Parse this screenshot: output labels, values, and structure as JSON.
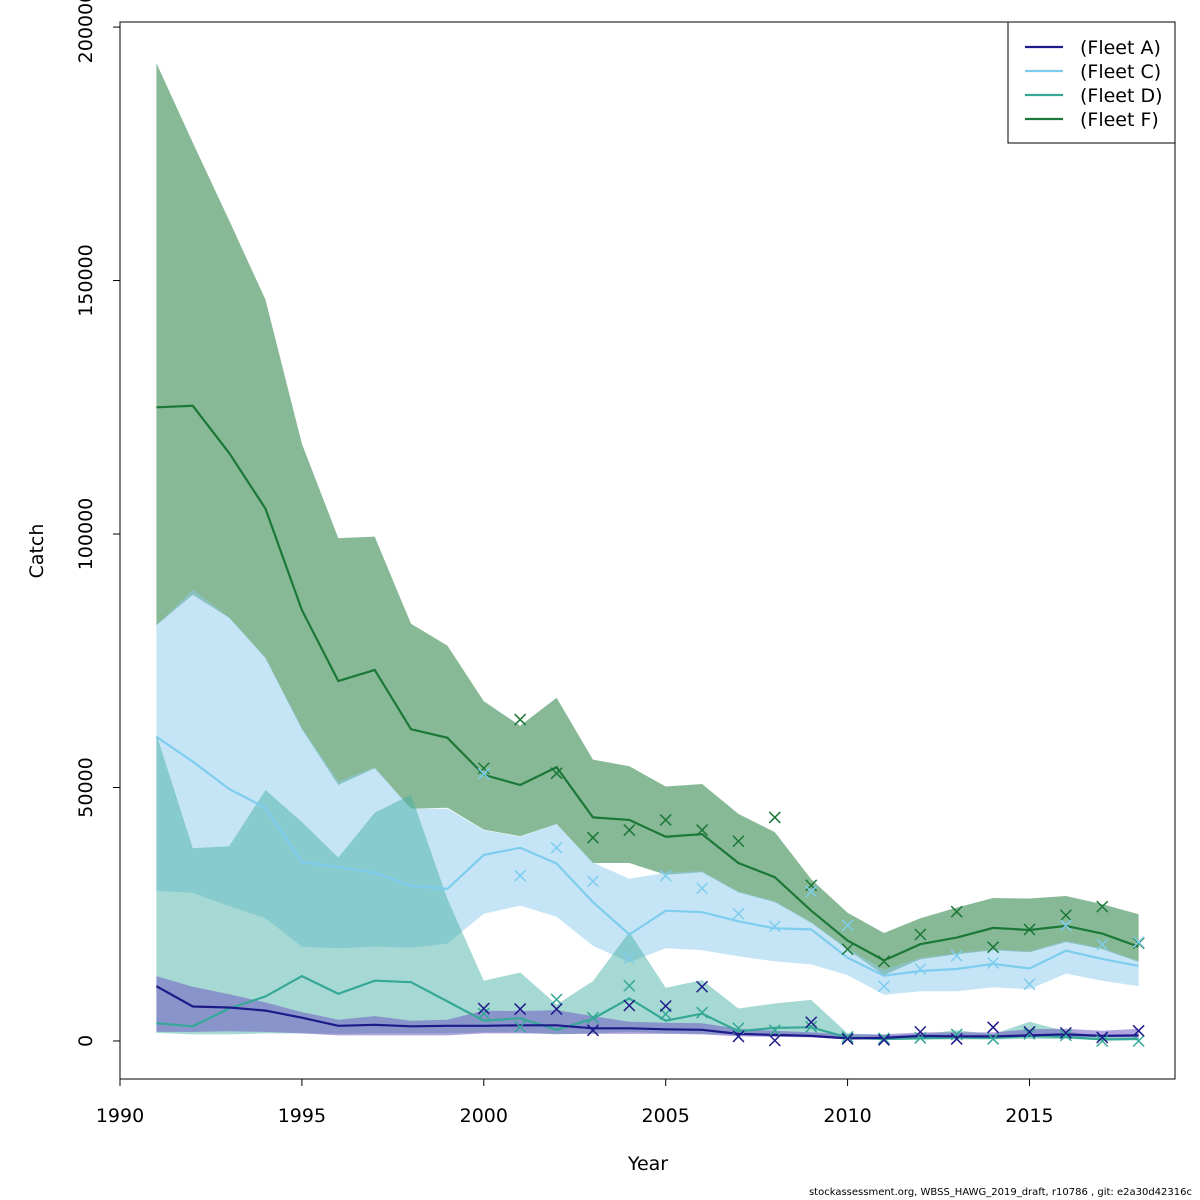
{
  "chart_data": {
    "type": "line",
    "title": "",
    "xlabel": "Year",
    "ylabel": "Catch",
    "xlim": [
      1990,
      2019
    ],
    "ylim": [
      -7500,
      201000
    ],
    "xticks": [
      1990,
      1995,
      2000,
      2005,
      2010,
      2015
    ],
    "yticks": [
      0,
      50000,
      100000,
      150000,
      200000
    ],
    "xtick_labels": [
      "1990",
      "1995",
      "2000",
      "2005",
      "2010",
      "2015"
    ],
    "ytick_labels": [
      "0",
      "50000",
      "100000",
      "150000",
      "200000"
    ],
    "legend_position": "top-right",
    "grid": false,
    "x": [
      1991,
      1992,
      1993,
      1994,
      1995,
      1996,
      1997,
      1998,
      1999,
      2000,
      2001,
      2002,
      2003,
      2004,
      2005,
      2006,
      2007,
      2008,
      2009,
      2010,
      2011,
      2012,
      2013,
      2014,
      2015,
      2016,
      2017,
      2018
    ],
    "series": [
      {
        "name": "(Fleet F)",
        "color": "#1b7837",
        "band_color": "#1b7837",
        "band_opacity": 0.52,
        "values": [
          125000,
          125300,
          116000,
          105000,
          85000,
          71000,
          73200,
          61500,
          59800,
          52500,
          50500,
          54000,
          44100,
          43600,
          40300,
          40800,
          35100,
          32300,
          25700,
          19800,
          15900,
          19100,
          20400,
          22300,
          21900,
          22700,
          21200,
          18600
        ],
        "lower": [
          82000,
          88000,
          83500,
          75500,
          61500,
          50500,
          53800,
          45800,
          46000,
          41700,
          40400,
          42800,
          35100,
          35100,
          32800,
          33300,
          29300,
          27400,
          23300,
          18000,
          13000,
          16100,
          17100,
          17900,
          17500,
          19500,
          18100,
          15600
        ],
        "upper": [
          192900,
          177200,
          161900,
          146200,
          117800,
          99200,
          99500,
          82300,
          78000,
          67000,
          62200,
          67700,
          55500,
          54200,
          50200,
          50700,
          44800,
          41200,
          31900,
          25300,
          21300,
          24200,
          26300,
          28200,
          28100,
          28600,
          27000,
          25000
        ],
        "observed": [
          null,
          null,
          null,
          null,
          null,
          null,
          null,
          null,
          null,
          53800,
          63400,
          52800,
          40100,
          41600,
          43600,
          41600,
          39400,
          44100,
          30700,
          18100,
          15700,
          21000,
          25500,
          18500,
          22000,
          24800,
          26500,
          19300
        ]
      },
      {
        "name": "(Fleet C)",
        "color": "#7fcdee",
        "band_color": "#8ccbee",
        "band_opacity": 0.5,
        "values": [
          60000,
          55100,
          49700,
          46000,
          35300,
          34300,
          33200,
          30600,
          30000,
          36700,
          38100,
          35000,
          27400,
          21000,
          25700,
          25400,
          23600,
          22200,
          22000,
          16400,
          12900,
          13800,
          14200,
          15200,
          14300,
          17800,
          16200,
          14800
        ],
        "lower": [
          29600,
          29200,
          26600,
          24200,
          18600,
          18300,
          18600,
          18400,
          19200,
          25100,
          26700,
          24500,
          18800,
          15500,
          18300,
          17900,
          16700,
          15700,
          15100,
          13000,
          9100,
          9800,
          9800,
          10600,
          10200,
          13300,
          11900,
          10800
        ],
        "upper": [
          82000,
          89000,
          83600,
          75700,
          61800,
          51200,
          54000,
          45800,
          45800,
          41600,
          40300,
          42800,
          35200,
          32000,
          33200,
          33500,
          29500,
          27600,
          23500,
          18300,
          14000,
          16400,
          17300,
          18100,
          17700,
          19800,
          18300,
          15800
        ],
        "observed": [
          null,
          null,
          null,
          null,
          null,
          null,
          null,
          null,
          null,
          52700,
          32600,
          38100,
          31500,
          16300,
          32600,
          30100,
          25100,
          22600,
          29500,
          22800,
          10800,
          14200,
          16800,
          15400,
          11200,
          22800,
          19000,
          19500
        ]
      },
      {
        "name": "(Fleet D)",
        "color": "#35a896",
        "band_color": "#45b0a4",
        "band_opacity": 0.48,
        "values": [
          3500,
          2900,
          6400,
          8800,
          12800,
          9300,
          11900,
          11600,
          7800,
          4000,
          4500,
          2200,
          4400,
          8400,
          4000,
          5400,
          1900,
          2600,
          2700,
          700,
          400,
          500,
          700,
          600,
          1000,
          800,
          300,
          400
        ],
        "lower": [
          1600,
          1300,
          1300,
          1500,
          1500,
          1400,
          1500,
          1500,
          1500,
          1700,
          1700,
          1300,
          1500,
          1800,
          1500,
          1400,
          1200,
          1000,
          1000,
          300,
          200,
          300,
          300,
          300,
          400,
          400,
          200,
          200
        ],
        "upper": [
          60500,
          38000,
          38400,
          49500,
          43200,
          36200,
          45000,
          48600,
          28000,
          11900,
          13500,
          7200,
          11800,
          21500,
          10500,
          12000,
          6400,
          7400,
          8100,
          1500,
          1200,
          1300,
          2100,
          1300,
          3800,
          1900,
          800,
          900
        ],
        "observed": [
          null,
          null,
          null,
          null,
          null,
          null,
          null,
          null,
          null,
          5400,
          2800,
          8200,
          4600,
          10900,
          5300,
          5600,
          2500,
          2100,
          2800,
          800,
          500,
          600,
          1300,
          400,
          1400,
          1100,
          0,
          0
        ]
      },
      {
        "name": "(Fleet A)",
        "color": "#1f1a8a",
        "band_color": "#6f5bc2",
        "band_opacity": 0.55,
        "values": [
          10800,
          6800,
          6600,
          6000,
          4600,
          3000,
          3200,
          2900,
          3000,
          3000,
          3100,
          3100,
          2500,
          2500,
          2300,
          2200,
          1400,
          1200,
          1000,
          500,
          600,
          1000,
          900,
          900,
          1100,
          1300,
          1000,
          1100
        ],
        "lower": [
          1800,
          1800,
          1900,
          1800,
          1500,
          1100,
          1100,
          1100,
          1100,
          1500,
          1500,
          1400,
          1400,
          1400,
          1400,
          1300,
          900,
          800,
          700,
          300,
          400,
          600,
          600,
          600,
          800,
          900,
          700,
          700
        ],
        "upper": [
          12800,
          10700,
          9200,
          7600,
          5700,
          4200,
          4900,
          4000,
          4200,
          6000,
          5900,
          6100,
          4900,
          3800,
          3600,
          3500,
          2400,
          2000,
          1700,
          1300,
          1300,
          1700,
          1700,
          1700,
          2300,
          2400,
          2000,
          2400
        ],
        "observed": [
          null,
          null,
          null,
          null,
          null,
          null,
          null,
          null,
          null,
          6400,
          6300,
          6300,
          2100,
          7000,
          6900,
          10700,
          900,
          100,
          3700,
          400,
          200,
          1800,
          400,
          2700,
          1800,
          1600,
          700,
          2000
        ]
      }
    ],
    "legend": [
      "(Fleet A)",
      "(Fleet C)",
      "(Fleet D)",
      "(Fleet F)"
    ]
  },
  "footer": "stockassessment.org, WBSS_HAWG_2019_draft, r10786 , git: e2a30d42316c"
}
